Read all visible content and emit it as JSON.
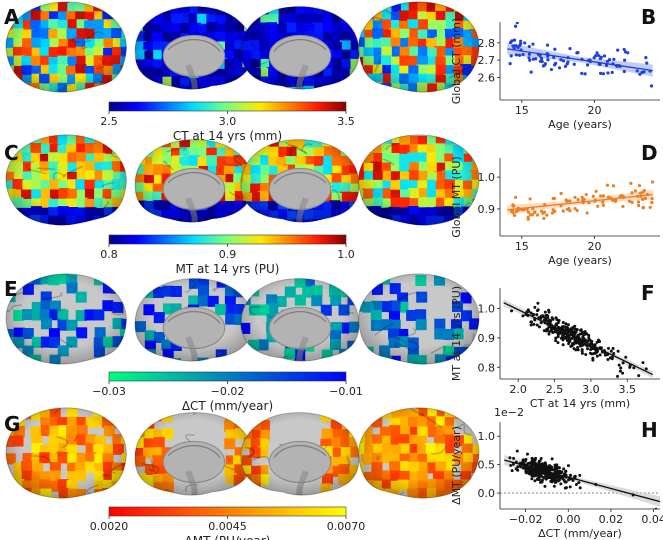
{
  "panel_labels": [
    "A",
    "B",
    "C",
    "D",
    "E",
    "F",
    "G",
    "H"
  ],
  "colors": {
    "blue_points": "#1f3fe0",
    "orange_points": "#f07d1f",
    "black_points": "#111111",
    "ci_blue": "#9fb2f0",
    "ci_orange": "#f8c9a0",
    "ci_gray": "#c8c8c8"
  },
  "colorbars": [
    {
      "id": "ct",
      "colormap": "jet",
      "ticks": [
        "2.5",
        "3.0",
        "3.5"
      ],
      "title": "CT at 14 yrs (mm)"
    },
    {
      "id": "mt",
      "colormap": "jet",
      "ticks": [
        "0.8",
        "0.9",
        "1.0"
      ],
      "title": "MT at 14 yrs (PU)"
    },
    {
      "id": "dct",
      "colormap": "winter",
      "ticks": [
        "−0.03",
        "−0.02",
        "−0.01"
      ],
      "title": "ΔCT (mm/year)"
    },
    {
      "id": "dmt",
      "colormap": "autumn",
      "ticks": [
        "0.0020",
        "0.0045",
        "0.0070"
      ],
      "title": "ΔMT (PU/year)"
    }
  ],
  "chart_data": [
    {
      "panel": "B",
      "type": "scatter",
      "xlabel": "Age (years)",
      "ylabel": "Global CT (mm)",
      "xlim": [
        13.5,
        24.5
      ],
      "ylim": [
        2.47,
        2.92
      ],
      "xticks": [
        15,
        20
      ],
      "xtick_labels": [
        "15",
        "20"
      ],
      "yticks": [
        2.6,
        2.7,
        2.8
      ],
      "ytick_labels": [
        "2.6",
        "2.7",
        "2.8"
      ],
      "fit": {
        "x": [
          14.0,
          24.0
        ],
        "y": [
          2.765,
          2.64
        ],
        "ci": 0.035
      },
      "point_seed": 11,
      "n_points": 100,
      "point_model": {
        "x_range": [
          14.0,
          24.0
        ],
        "slope": -0.0125,
        "intercept": 2.94,
        "noise": 0.09
      }
    },
    {
      "panel": "D",
      "type": "scatter",
      "xlabel": "Age (years)",
      "ylabel": "Global MT (PU)",
      "xlim": [
        13.5,
        24.5
      ],
      "ylim": [
        0.815,
        1.06
      ],
      "xticks": [
        15,
        20
      ],
      "xtick_labels": [
        "15",
        "20"
      ],
      "yticks": [
        0.9,
        1.0
      ],
      "ytick_labels": [
        "0.9",
        "1.0"
      ],
      "fit": {
        "x": [
          14.0,
          24.0
        ],
        "y": [
          0.897,
          0.945
        ],
        "ci": 0.015
      },
      "point_seed": 23,
      "n_points": 100,
      "point_model": {
        "x_range": [
          14.0,
          24.0
        ],
        "slope": 0.0048,
        "intercept": 0.83,
        "noise": 0.035
      }
    },
    {
      "panel": "F",
      "type": "scatter",
      "xlabel": "CT at 14 yrs (mm)",
      "ylabel": "MT at 14 yrs (PU)",
      "xlim": [
        1.75,
        3.95
      ],
      "ylim": [
        0.76,
        1.07
      ],
      "xticks": [
        2.0,
        2.5,
        3.0,
        3.5
      ],
      "xtick_labels": [
        "2.0",
        "2.5",
        "3.0",
        "3.5"
      ],
      "yticks": [
        0.8,
        0.9,
        1.0
      ],
      "ytick_labels": [
        "0.8",
        "0.9",
        "1.0"
      ],
      "fit": {
        "x": [
          1.8,
          3.85
        ],
        "y": [
          1.02,
          0.775
        ],
        "ci": 0.012
      },
      "point_seed": 37,
      "n_points": 330,
      "point_model": {
        "x_center": 2.75,
        "x_spread": 0.3,
        "slope": -0.12,
        "intercept": 1.235,
        "noise": 0.04
      }
    },
    {
      "panel": "H",
      "type": "scatter",
      "xlabel": "ΔCT (mm/year)",
      "ylabel": "ΔMT (PU/year)",
      "scale_label": "1e−2",
      "xlim": [
        -0.032,
        0.043
      ],
      "ylim": [
        -0.0028,
        0.0125
      ],
      "xticks": [
        -0.02,
        0.0,
        0.02,
        0.04
      ],
      "xtick_labels": [
        "−0.02",
        "0.00",
        "0.02",
        "0.04"
      ],
      "yticks": [
        0.0,
        0.005,
        0.01
      ],
      "ytick_labels": [
        "0.0",
        "0.5",
        "1.0"
      ],
      "zero_line": 0.0,
      "fit": {
        "x": [
          -0.03,
          0.043
        ],
        "y": [
          0.0058,
          -0.0015
        ],
        "ci": 0.0009
      },
      "point_seed": 53,
      "n_points": 330,
      "point_model": {
        "x_center": -0.012,
        "x_spread": 0.0065,
        "slope": -0.1,
        "intercept": 0.0028,
        "noise": 0.0018
      }
    }
  ]
}
